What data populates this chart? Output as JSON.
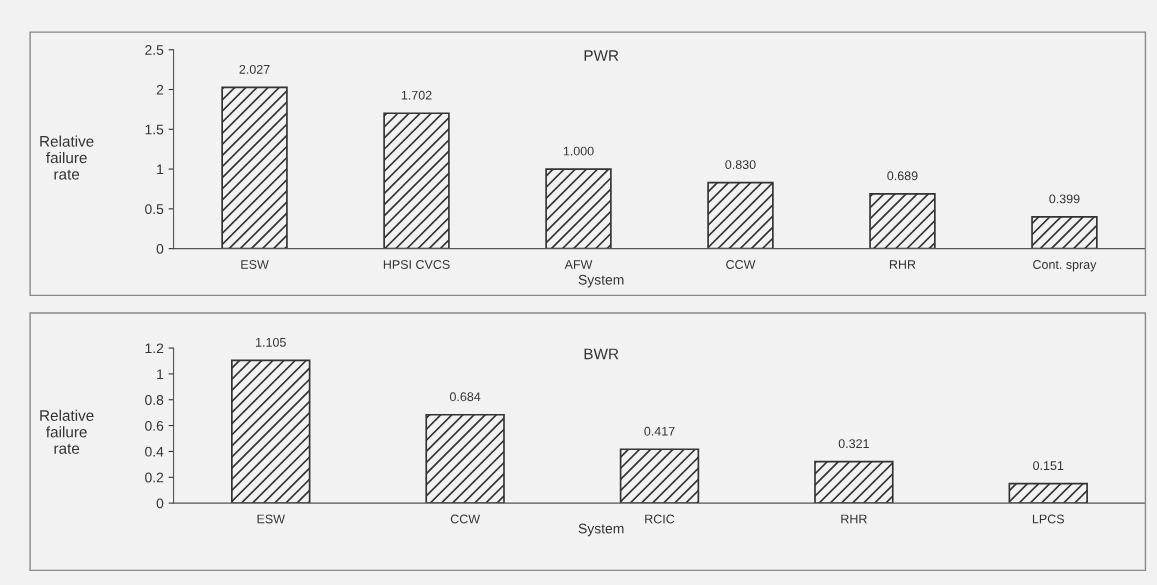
{
  "chart_data": [
    {
      "type": "bar",
      "title": "PWR",
      "xlabel": "System",
      "ylabel": "Relative\nfailure\nrate",
      "categories": [
        "ESW",
        "HPSI CVCS",
        "AFW",
        "CCW",
        "RHR",
        "Cont. spray"
      ],
      "values": [
        2.027,
        1.702,
        1.0,
        0.83,
        0.689,
        0.399
      ],
      "value_labels": [
        "2.027",
        "1.702",
        "1.000",
        "0.830",
        "0.689",
        "0.399"
      ],
      "color": "#333333",
      "ylim": [
        0,
        2.5
      ],
      "yticks": [
        0,
        0.5,
        1,
        1.5,
        2,
        2.5
      ],
      "grid": false,
      "legend": false
    },
    {
      "type": "bar",
      "title": "BWR",
      "xlabel": "System",
      "ylabel": "Relative\nfailure\nrate",
      "categories": [
        "ESW",
        "CCW",
        "RCIC",
        "RHR",
        "LPCS"
      ],
      "values": [
        1.105,
        0.684,
        0.417,
        0.321,
        0.151
      ],
      "value_labels": [
        "1.105",
        "0.684",
        "0.417",
        "0.321",
        "0.151"
      ],
      "color": "#333333",
      "ylim": [
        0,
        1.2
      ],
      "yticks": [
        0,
        0.2,
        0.4,
        0.6,
        0.8,
        1,
        1.2
      ],
      "grid": false,
      "legend": false
    }
  ]
}
